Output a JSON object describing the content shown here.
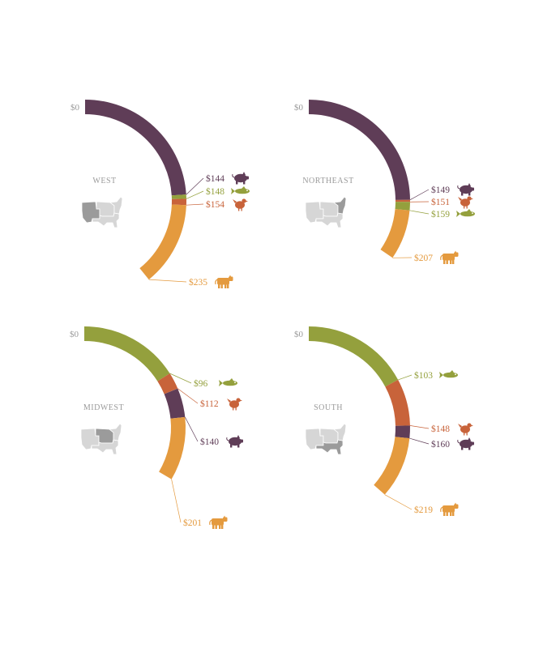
{
  "colors": {
    "pork": "#5f3d57",
    "seafood": "#94a03d",
    "chicken": "#c8633a",
    "beef": "#e49a3e",
    "map_base": "#d6d6d6",
    "map_highlight": "#9b9b9b",
    "zero_label": "#999999",
    "region_label": "#9a9a9a"
  },
  "chart_data": [
    {
      "type": "radial-cumulative-bar",
      "title": "WEST",
      "zero_label": "$0",
      "series": [
        {
          "key": "pork",
          "label": "$144",
          "value": 144,
          "icon": "pig-icon"
        },
        {
          "key": "seafood",
          "label": "$148",
          "value": 148,
          "icon": "fish-icon"
        },
        {
          "key": "chicken",
          "label": "$154",
          "value": 154,
          "icon": "chicken-icon"
        },
        {
          "key": "beef",
          "label": "$235",
          "value": 235,
          "icon": "cow-icon"
        }
      ]
    },
    {
      "type": "radial-cumulative-bar",
      "title": "NORTHEAST",
      "zero_label": "$0",
      "series": [
        {
          "key": "pork",
          "label": "$149",
          "value": 149,
          "icon": "pig-icon"
        },
        {
          "key": "chicken",
          "label": "$151",
          "value": 151,
          "icon": "chicken-icon"
        },
        {
          "key": "seafood",
          "label": "$159",
          "value": 159,
          "icon": "fish-icon"
        },
        {
          "key": "beef",
          "label": "$207",
          "value": 207,
          "icon": "cow-icon"
        }
      ]
    },
    {
      "type": "radial-cumulative-bar",
      "title": "MIDWEST",
      "zero_label": "$0",
      "series": [
        {
          "key": "seafood",
          "label": "$96",
          "value": 96,
          "icon": "fish-icon"
        },
        {
          "key": "chicken",
          "label": "$112",
          "value": 112,
          "icon": "chicken-icon"
        },
        {
          "key": "pork",
          "label": "$140",
          "value": 140,
          "icon": "pig-icon"
        },
        {
          "key": "beef",
          "label": "$201",
          "value": 201,
          "icon": "cow-icon"
        }
      ]
    },
    {
      "type": "radial-cumulative-bar",
      "title": "SOUTH",
      "zero_label": "$0",
      "series": [
        {
          "key": "seafood",
          "label": "$103",
          "value": 103,
          "icon": "fish-icon"
        },
        {
          "key": "chicken",
          "label": "$148",
          "value": 148,
          "icon": "chicken-icon"
        },
        {
          "key": "pork",
          "label": "$160",
          "value": 160,
          "icon": "pig-icon"
        },
        {
          "key": "beef",
          "label": "$219",
          "value": 219,
          "icon": "cow-icon"
        }
      ]
    }
  ]
}
